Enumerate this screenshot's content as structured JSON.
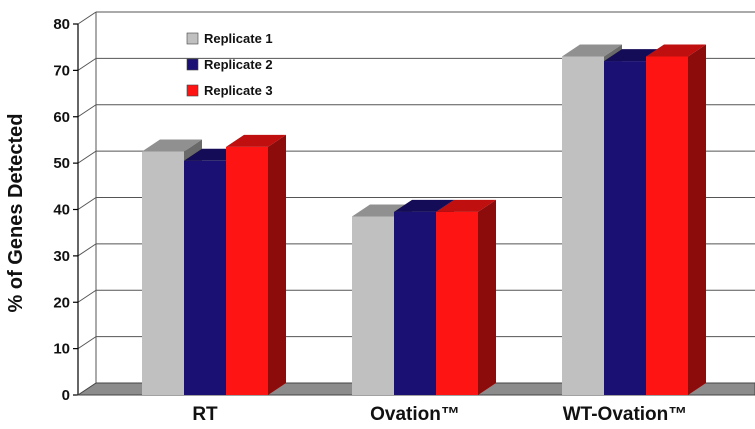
{
  "chart_data": {
    "type": "bar",
    "title": "",
    "xlabel": "",
    "ylabel": "% of  Genes Detected",
    "categories": [
      "RT",
      "Ovation™",
      "WT-Ovation™"
    ],
    "series": [
      {
        "name": "Replicate 1",
        "values": [
          52.5,
          38.5,
          73
        ],
        "color": "#c0c0c0"
      },
      {
        "name": "Replicate 2",
        "values": [
          50.5,
          39.5,
          72
        ],
        "color": "#1a1074"
      },
      {
        "name": "Replicate 3",
        "values": [
          53.5,
          39.5,
          73
        ],
        "color": "#ff1414"
      }
    ],
    "ylim": [
      0,
      80
    ],
    "yticks": [
      0,
      10,
      20,
      30,
      40,
      50,
      60,
      70,
      80
    ],
    "grid": true,
    "legend_position": "top-left inside plot",
    "style": "3d"
  }
}
